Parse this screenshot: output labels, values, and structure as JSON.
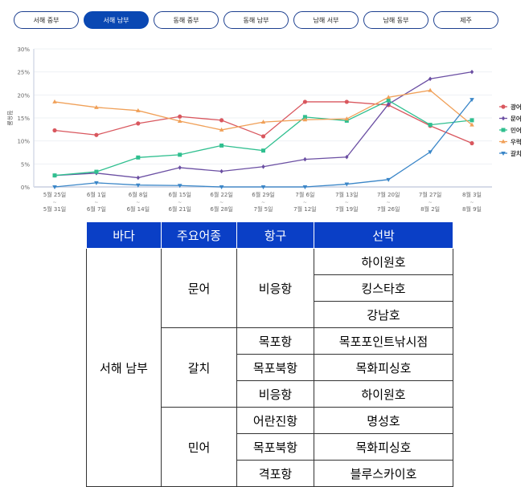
{
  "tabs": [
    "서해 중부",
    "서해 남부",
    "동해 중부",
    "동해 남부",
    "남해 서부",
    "남해 동부",
    "제주"
  ],
  "active_tab": 1,
  "chart_data": {
    "type": "line",
    "ylabel": "점유율",
    "ylim": [
      0,
      30
    ],
    "yticks": [
      "0%",
      "5%",
      "10%",
      "15%",
      "20%",
      "25%",
      "30%"
    ],
    "x": [
      [
        "5월 25일",
        "5월 31일"
      ],
      [
        "6월 1일",
        "6월 7일"
      ],
      [
        "6월 8일",
        "6월 14일"
      ],
      [
        "6월 15일",
        "6월 21일"
      ],
      [
        "6월 22일",
        "6월 28일"
      ],
      [
        "6월 29일",
        "7월 5일"
      ],
      [
        "7월 6일",
        "7월 12일"
      ],
      [
        "7월 13일",
        "7월 19일"
      ],
      [
        "7월 20일",
        "7월 26일"
      ],
      [
        "7월 27일",
        "8월 2일"
      ],
      [
        "8월 3일",
        "8월 9일"
      ]
    ],
    "legend": "right",
    "series": [
      {
        "name": "광어",
        "color": "#d9575e",
        "marker": "circle",
        "values": [
          12.3,
          11.3,
          13.8,
          15.3,
          14.5,
          11.0,
          18.5,
          18.5,
          17.8,
          13.3,
          9.5
        ]
      },
      {
        "name": "문어",
        "color": "#6b4fa3",
        "marker": "diamond",
        "values": [
          2.5,
          3.0,
          2.0,
          4.2,
          3.4,
          4.4,
          6.0,
          6.5,
          18.0,
          23.5,
          25.0
        ]
      },
      {
        "name": "민어",
        "color": "#2fbf8f",
        "marker": "square",
        "values": [
          2.5,
          3.3,
          6.4,
          7.0,
          9.0,
          7.9,
          15.2,
          14.4,
          18.8,
          13.5,
          14.5
        ]
      },
      {
        "name": "우럭",
        "color": "#f0a058",
        "marker": "triangle",
        "values": [
          18.5,
          17.3,
          16.6,
          14.3,
          12.4,
          14.1,
          14.6,
          14.8,
          19.5,
          21.0,
          13.5
        ]
      },
      {
        "name": "갈치",
        "color": "#3a86c8",
        "marker": "down-triangle",
        "values": [
          0,
          0.9,
          0.4,
          0.3,
          0,
          0,
          0,
          0.6,
          1.6,
          7.6,
          19.0
        ]
      }
    ]
  },
  "table": {
    "headers": [
      "바다",
      "주요어종",
      "항구",
      "선박"
    ],
    "sea": "서해 남부",
    "species": [
      "문어",
      "갈치",
      "민어"
    ],
    "ports": [
      "비응항",
      "목포항",
      "목포북항",
      "비응항",
      "어란진항",
      "목포북항",
      "격포항"
    ],
    "ships": [
      "하이원호",
      "킹스타호",
      "강남호",
      "목포포인트낚시점",
      "목화피싱호",
      "하이원호",
      "명성호",
      "목화피싱호",
      "블루스카이호"
    ]
  }
}
